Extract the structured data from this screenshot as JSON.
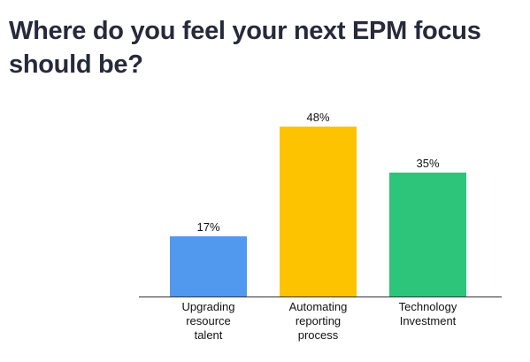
{
  "title": "Where do you feel your next EPM focus should be?",
  "chart_data": {
    "type": "bar",
    "title": "Where do you feel your next EPM focus should be?",
    "categories": [
      "Upgrading resource talent",
      "Automating reporting process",
      "Technology Investment"
    ],
    "category_lines": [
      [
        "Upgrading",
        "resource",
        "talent"
      ],
      [
        "Automating",
        "reporting",
        "process"
      ],
      [
        "Technology",
        "Investment"
      ]
    ],
    "values": [
      17,
      48,
      35
    ],
    "value_labels": [
      "17%",
      "48%",
      "35%"
    ],
    "unit": "%",
    "colors": [
      "#5099ee",
      "#fdc300",
      "#2cc57a"
    ],
    "xlabel": "",
    "ylabel": "",
    "ylim": [
      0,
      48
    ],
    "grid": false,
    "legend": "none"
  }
}
